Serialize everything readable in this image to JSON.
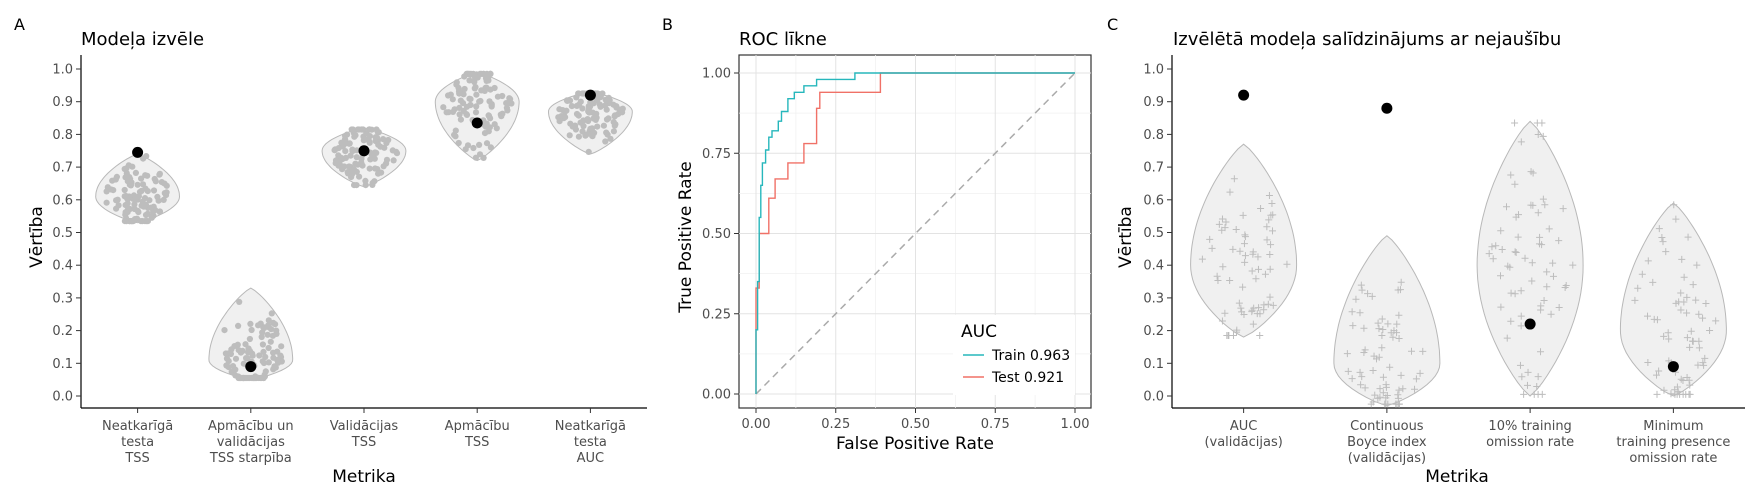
{
  "chart_data": [
    {
      "panel_label": "A",
      "type": "violin",
      "title": "Modeļa izvēle",
      "xlabel": "Metrika",
      "ylabel": "Vērtība",
      "ylim": [
        0.0,
        1.0
      ],
      "yticks": [
        "0.0",
        "0.1",
        "0.2",
        "0.3",
        "0.4",
        "0.5",
        "0.6",
        "0.7",
        "0.8",
        "0.9",
        "1.0"
      ],
      "categories": [
        {
          "label": [
            "Neatkarīgā",
            "testa",
            "TSS"
          ],
          "range": [
            0.53,
            0.74
          ],
          "mode": 0.61,
          "selected": 0.745
        },
        {
          "label": [
            "Apmācību un",
            "validācijas",
            "TSS starpība"
          ],
          "range": [
            0.05,
            0.33
          ],
          "mode": 0.11,
          "selected": 0.09
        },
        {
          "label": [
            "Validācijas",
            "TSS"
          ],
          "range": [
            0.64,
            0.82
          ],
          "mode": 0.75,
          "selected": 0.75
        },
        {
          "label": [
            "Apmācību",
            "TSS"
          ],
          "range": [
            0.72,
            0.99
          ],
          "mode": 0.9,
          "selected": 0.835
        },
        {
          "label": [
            "Neatkarīgā",
            "testa",
            "AUC"
          ],
          "range": [
            0.74,
            0.93
          ],
          "mode": 0.87,
          "selected": 0.92
        }
      ]
    },
    {
      "panel_label": "B",
      "type": "line",
      "title": "ROC līkne",
      "xlabel": "False Positive Rate",
      "ylabel": "True Positive Rate",
      "xlim": [
        0,
        1
      ],
      "ylim": [
        0,
        1
      ],
      "xticks": [
        "0.00",
        "0.25",
        "0.50",
        "0.75",
        "1.00"
      ],
      "yticks": [
        "0.00",
        "0.25",
        "0.50",
        "0.75",
        "1.00"
      ],
      "legend_title": "AUC",
      "legend_position": "bottom-right",
      "series": [
        {
          "name": "Train 0.963",
          "color": "#26b7bc",
          "x": [
            0,
            0,
            0.005,
            0.005,
            0.01,
            0.01,
            0.015,
            0.015,
            0.02,
            0.02,
            0.03,
            0.03,
            0.04,
            0.04,
            0.05,
            0.05,
            0.07,
            0.07,
            0.08,
            0.08,
            0.1,
            0.1,
            0.12,
            0.12,
            0.15,
            0.15,
            0.19,
            0.19,
            0.31,
            0.31,
            1.0
          ],
          "y": [
            0,
            0.2,
            0.2,
            0.35,
            0.35,
            0.55,
            0.55,
            0.65,
            0.65,
            0.72,
            0.72,
            0.76,
            0.76,
            0.8,
            0.8,
            0.82,
            0.82,
            0.85,
            0.85,
            0.88,
            0.88,
            0.92,
            0.92,
            0.94,
            0.94,
            0.96,
            0.96,
            0.98,
            0.98,
            1.0,
            1.0
          ]
        },
        {
          "name": "Test 0.921",
          "color": "#f07167",
          "x": [
            0,
            0,
            0.01,
            0.01,
            0.02,
            0.02,
            0.04,
            0.04,
            0.06,
            0.06,
            0.08,
            0.08,
            0.1,
            0.1,
            0.15,
            0.15,
            0.19,
            0.19,
            0.2,
            0.2,
            0.39,
            0.39,
            1.0
          ],
          "y": [
            0,
            0.33,
            0.33,
            0.5,
            0.5,
            0.5,
            0.5,
            0.61,
            0.61,
            0.67,
            0.67,
            0.67,
            0.67,
            0.72,
            0.72,
            0.78,
            0.78,
            0.89,
            0.89,
            0.94,
            0.94,
            1.0,
            1.0
          ]
        }
      ],
      "reference_line": {
        "style": "dashed",
        "color": "#aaaaaa",
        "x": [
          0,
          1
        ],
        "y": [
          0,
          1
        ]
      }
    },
    {
      "panel_label": "C",
      "type": "violin",
      "title": "Izvēlētā modeļa salīdzinājums ar nejaušību",
      "xlabel": "Metrika",
      "ylabel": "Vērtība",
      "ylim": [
        0.0,
        1.0
      ],
      "yticks": [
        "0.0",
        "0.1",
        "0.2",
        "0.3",
        "0.4",
        "0.5",
        "0.6",
        "0.7",
        "0.8",
        "0.9",
        "1.0"
      ],
      "categories": [
        {
          "label": [
            "AUC",
            "(validācijas)"
          ],
          "range": [
            0.18,
            0.77
          ],
          "mode": 0.4,
          "selected": 0.92
        },
        {
          "label": [
            "Continuous",
            "Boyce index",
            "(validācijas)"
          ],
          "range": [
            -0.03,
            0.49
          ],
          "mode": 0.1,
          "selected": 0.88
        },
        {
          "label": [
            "10% training",
            "omission rate"
          ],
          "range": [
            0.0,
            0.84
          ],
          "mode": 0.4,
          "selected": 0.22
        },
        {
          "label": [
            "Minimum",
            "training presence",
            "omission rate"
          ],
          "range": [
            0.0,
            0.59
          ],
          "mode": 0.2,
          "selected": 0.09
        }
      ]
    }
  ]
}
